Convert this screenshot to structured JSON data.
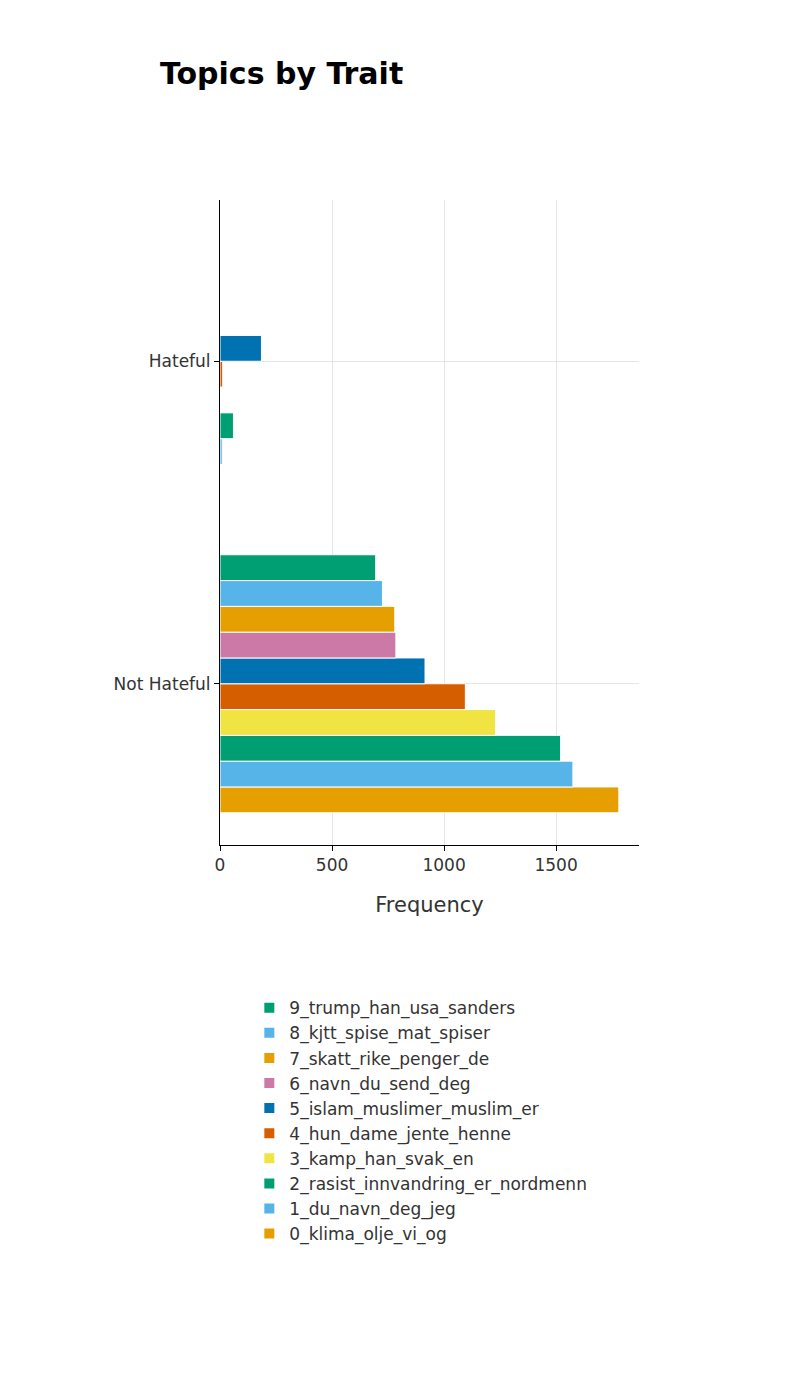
{
  "chart_data": {
    "type": "bar",
    "title": "Topics by Trait",
    "orientation": "horizontal",
    "x_label": "Frequency",
    "categories": [
      "Hateful",
      "Not Hateful"
    ],
    "series": [
      {
        "name": "0_klima_olje_vi_og",
        "color": "#E69F00",
        "values": [
          2,
          1780
        ]
      },
      {
        "name": "1_du_navn_deg_jeg",
        "color": "#56B4E9",
        "values": [
          10,
          1575
        ]
      },
      {
        "name": "2_rasist_innvandring_er_nordmenn",
        "color": "#009E73",
        "values": [
          60,
          1520
        ]
      },
      {
        "name": "3_kamp_han_svak_en",
        "color": "#F0E442",
        "values": [
          0,
          1230
        ]
      },
      {
        "name": "4_hun_dame_jente_henne",
        "color": "#D55E00",
        "values": [
          12,
          1095
        ]
      },
      {
        "name": "5_islam_muslimer_muslim_er",
        "color": "#0072B2",
        "values": [
          185,
          915
        ]
      },
      {
        "name": "6_navn_du_send_deg",
        "color": "#CC79A7",
        "values": [
          0,
          785
        ]
      },
      {
        "name": "7_skatt_rike_penger_de",
        "color": "#E69F00",
        "values": [
          2,
          780
        ]
      },
      {
        "name": "8_kjtt_spise_mat_spiser",
        "color": "#56B4E9",
        "values": [
          0,
          725
        ]
      },
      {
        "name": "9_trump_han_usa_sanders",
        "color": "#009E73",
        "values": [
          0,
          695
        ]
      }
    ],
    "xlim": [
      0,
      1870
    ],
    "xticks": [
      0,
      500,
      1000,
      1500
    ],
    "grid": true,
    "legend": "bottom"
  }
}
